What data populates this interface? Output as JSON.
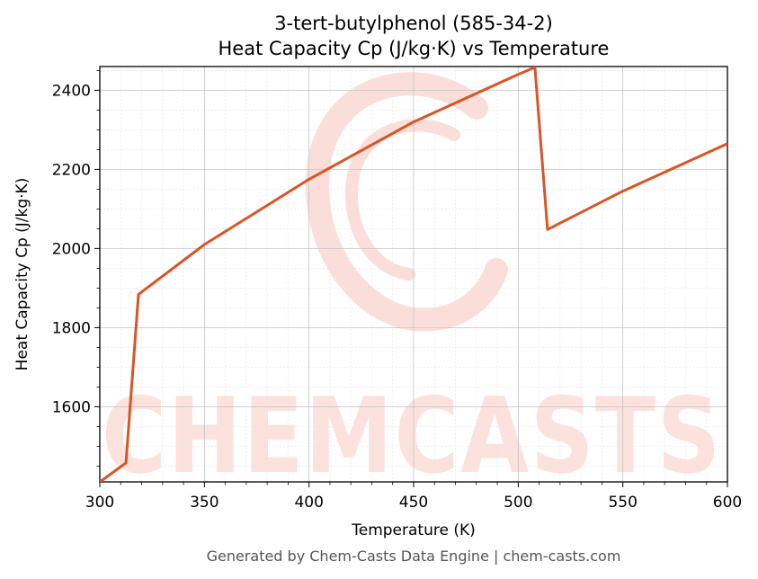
{
  "chart_data": {
    "type": "line",
    "title": "3-tert-butylphenol (585-34-2)",
    "subtitle": "Heat Capacity Cp (J/kg·K) vs Temperature",
    "xlabel": "Temperature (K)",
    "ylabel": "Heat Capacity Cp (J/kg·K)",
    "xlim": [
      300,
      600
    ],
    "ylim": [
      1410,
      2460
    ],
    "xticks": [
      300,
      350,
      400,
      450,
      500,
      550,
      600
    ],
    "yticks": [
      1600,
      1800,
      2000,
      2200,
      2400
    ],
    "grid": true,
    "line_color": "#d95525",
    "series": [
      {
        "x": [
          300,
          312.5,
          318.5,
          350,
          400,
          450,
          500,
          508,
          514,
          550,
          600
        ],
        "y": [
          1410,
          1458,
          1884,
          2010,
          2175,
          2320,
          2440,
          2458,
          2048,
          2145,
          2265
        ]
      }
    ]
  },
  "watermark": {
    "text": "CHEMCASTS"
  },
  "footer": "Generated by Chem-Casts Data Engine | chem-casts.com"
}
